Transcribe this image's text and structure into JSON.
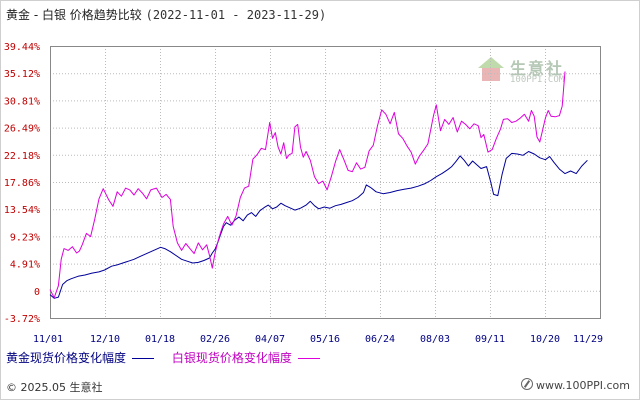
{
  "title": {
    "text": "黄金 - 白银 价格趋势比较",
    "dates": "(2022-11-01 - 2023-11-29)"
  },
  "watermark": {
    "brand": "生意社",
    "site": "100PPI.COM"
  },
  "legend": {
    "gold": "黄金现货价格变化幅度",
    "silver": "白银现货价格变化幅度"
  },
  "footer": {
    "copyright": "© 2025.05 生意社",
    "site": "www.100PPI.com"
  },
  "colors": {
    "gold": "#000099",
    "silver": "#dd00dd",
    "grid": "#bbbbbb"
  },
  "chart_data": {
    "type": "line",
    "y_ticks": [
      "39.44%",
      "35.12%",
      "30.81%",
      "26.49%",
      "22.18%",
      "17.86%",
      "13.54%",
      "9.23%",
      "4.91%",
      "0",
      "-3.72%"
    ],
    "x_ticks": [
      "11/01",
      "12/10",
      "01/18",
      "02/26",
      "04/07",
      "05/16",
      "06/24",
      "08/03",
      "09/11",
      "10/20",
      "11/29"
    ],
    "ylim": [
      -3.72,
      39.44
    ],
    "x_unit": "days since 2022-11-01",
    "xlim": [
      0,
      393
    ],
    "series": [
      {
        "name": "黄金现货价格变化幅度",
        "points": [
          [
            0,
            0
          ],
          [
            3,
            -0.6
          ],
          [
            6,
            -0.4
          ],
          [
            9,
            1.6
          ],
          [
            12,
            2.2
          ],
          [
            15,
            2.5
          ],
          [
            20,
            2.9
          ],
          [
            25,
            3.1
          ],
          [
            30,
            3.4
          ],
          [
            35,
            3.6
          ],
          [
            39,
            3.9
          ],
          [
            44,
            4.5
          ],
          [
            48,
            4.7
          ],
          [
            52,
            5.0
          ],
          [
            56,
            5.3
          ],
          [
            60,
            5.6
          ],
          [
            64,
            6.0
          ],
          [
            68,
            6.4
          ],
          [
            72,
            6.8
          ],
          [
            76,
            7.2
          ],
          [
            79,
            7.5
          ],
          [
            82,
            7.3
          ],
          [
            86,
            6.8
          ],
          [
            90,
            6.2
          ],
          [
            94,
            5.6
          ],
          [
            98,
            5.3
          ],
          [
            102,
            5.0
          ],
          [
            106,
            5.1
          ],
          [
            110,
            5.4
          ],
          [
            114,
            5.8
          ],
          [
            116,
            6.6
          ],
          [
            118,
            7.2
          ],
          [
            120,
            8.3
          ],
          [
            122,
            9.6
          ],
          [
            124,
            10.8
          ],
          [
            126,
            11.4
          ],
          [
            129,
            11.0
          ],
          [
            132,
            11.8
          ],
          [
            135,
            12.3
          ],
          [
            138,
            11.7
          ],
          [
            141,
            12.6
          ],
          [
            144,
            13.0
          ],
          [
            147,
            12.4
          ],
          [
            150,
            13.3
          ],
          [
            153,
            13.8
          ],
          [
            156,
            14.2
          ],
          [
            159,
            13.6
          ],
          [
            162,
            13.9
          ],
          [
            165,
            14.5
          ],
          [
            168,
            14.1
          ],
          [
            171,
            13.8
          ],
          [
            175,
            13.4
          ],
          [
            179,
            13.7
          ],
          [
            183,
            14.2
          ],
          [
            186,
            14.8
          ],
          [
            189,
            14.1
          ],
          [
            192,
            13.6
          ],
          [
            196,
            13.9
          ],
          [
            200,
            13.7
          ],
          [
            204,
            14.1
          ],
          [
            208,
            14.3
          ],
          [
            212,
            14.6
          ],
          [
            216,
            14.9
          ],
          [
            220,
            15.4
          ],
          [
            224,
            16.2
          ],
          [
            226,
            17.4
          ],
          [
            229,
            17.0
          ],
          [
            233,
            16.3
          ],
          [
            238,
            16.0
          ],
          [
            243,
            16.2
          ],
          [
            248,
            16.5
          ],
          [
            253,
            16.7
          ],
          [
            258,
            16.9
          ],
          [
            263,
            17.2
          ],
          [
            268,
            17.6
          ],
          [
            272,
            18.1
          ],
          [
            276,
            18.7
          ],
          [
            280,
            19.2
          ],
          [
            284,
            19.8
          ],
          [
            287,
            20.3
          ],
          [
            290,
            21.1
          ],
          [
            293,
            22.0
          ],
          [
            296,
            21.3
          ],
          [
            299,
            20.4
          ],
          [
            302,
            21.2
          ],
          [
            305,
            20.6
          ],
          [
            308,
            20.0
          ],
          [
            312,
            20.3
          ],
          [
            315,
            17.8
          ],
          [
            317,
            15.9
          ],
          [
            320,
            15.7
          ],
          [
            323,
            19.0
          ],
          [
            326,
            21.6
          ],
          [
            330,
            22.4
          ],
          [
            334,
            22.3
          ],
          [
            338,
            22.1
          ],
          [
            342,
            22.7
          ],
          [
            346,
            22.3
          ],
          [
            350,
            21.7
          ],
          [
            354,
            21.4
          ],
          [
            357,
            21.9
          ],
          [
            360,
            21.0
          ],
          [
            364,
            19.9
          ],
          [
            368,
            19.2
          ],
          [
            372,
            19.6
          ],
          [
            376,
            19.2
          ],
          [
            380,
            20.4
          ],
          [
            384,
            21.3
          ]
        ]
      },
      {
        "name": "白银现货价格变化幅度",
        "points": [
          [
            0,
            0.8
          ],
          [
            3,
            -0.5
          ],
          [
            6,
            1.4
          ],
          [
            8,
            5.6
          ],
          [
            10,
            7.3
          ],
          [
            13,
            7.0
          ],
          [
            16,
            7.6
          ],
          [
            19,
            6.6
          ],
          [
            21,
            6.9
          ],
          [
            23,
            7.9
          ],
          [
            26,
            9.7
          ],
          [
            29,
            9.2
          ],
          [
            32,
            12.0
          ],
          [
            35,
            15.2
          ],
          [
            38,
            16.8
          ],
          [
            42,
            15.0
          ],
          [
            45,
            14.0
          ],
          [
            48,
            16.3
          ],
          [
            51,
            15.6
          ],
          [
            54,
            16.9
          ],
          [
            57,
            16.6
          ],
          [
            60,
            15.8
          ],
          [
            63,
            16.8
          ],
          [
            66,
            16.1
          ],
          [
            69,
            15.2
          ],
          [
            72,
            16.6
          ],
          [
            76,
            16.9
          ],
          [
            80,
            15.4
          ],
          [
            83,
            15.9
          ],
          [
            86,
            15.1
          ],
          [
            88,
            10.8
          ],
          [
            91,
            8.2
          ],
          [
            94,
            7.0
          ],
          [
            97,
            8.1
          ],
          [
            100,
            7.3
          ],
          [
            103,
            6.5
          ],
          [
            106,
            8.2
          ],
          [
            109,
            7.1
          ],
          [
            112,
            7.9
          ],
          [
            114,
            6.2
          ],
          [
            116,
            4.2
          ],
          [
            118,
            6.6
          ],
          [
            120,
            8.4
          ],
          [
            122,
            9.9
          ],
          [
            124,
            11.2
          ],
          [
            127,
            12.4
          ],
          [
            130,
            11.0
          ],
          [
            133,
            12.5
          ],
          [
            136,
            15.4
          ],
          [
            139,
            16.9
          ],
          [
            142,
            17.2
          ],
          [
            145,
            21.5
          ],
          [
            148,
            22.2
          ],
          [
            151,
            23.2
          ],
          [
            154,
            23.0
          ],
          [
            157,
            27.3
          ],
          [
            159,
            24.8
          ],
          [
            161,
            25.7
          ],
          [
            163,
            23.4
          ],
          [
            165,
            22.3
          ],
          [
            167,
            24.1
          ],
          [
            169,
            21.6
          ],
          [
            171,
            22.2
          ],
          [
            173,
            22.4
          ],
          [
            175,
            26.6
          ],
          [
            177,
            27.0
          ],
          [
            179,
            23.4
          ],
          [
            181,
            21.8
          ],
          [
            183,
            22.7
          ],
          [
            186,
            21.3
          ],
          [
            189,
            18.7
          ],
          [
            192,
            17.6
          ],
          [
            195,
            18.0
          ],
          [
            198,
            16.6
          ],
          [
            201,
            18.7
          ],
          [
            204,
            21.1
          ],
          [
            207,
            23.0
          ],
          [
            210,
            21.4
          ],
          [
            213,
            19.7
          ],
          [
            216,
            19.5
          ],
          [
            219,
            20.9
          ],
          [
            222,
            19.9
          ],
          [
            225,
            20.2
          ],
          [
            228,
            22.8
          ],
          [
            231,
            23.7
          ],
          [
            234,
            26.8
          ],
          [
            237,
            29.3
          ],
          [
            240,
            28.6
          ],
          [
            243,
            27.1
          ],
          [
            246,
            28.9
          ],
          [
            249,
            25.5
          ],
          [
            252,
            24.8
          ],
          [
            255,
            23.6
          ],
          [
            258,
            22.6
          ],
          [
            261,
            20.7
          ],
          [
            264,
            22.0
          ],
          [
            267,
            22.9
          ],
          [
            270,
            23.9
          ],
          [
            274,
            28.4
          ],
          [
            276,
            30.1
          ],
          [
            279,
            26.0
          ],
          [
            282,
            27.8
          ],
          [
            285,
            27.0
          ],
          [
            288,
            28.1
          ],
          [
            291,
            25.8
          ],
          [
            294,
            27.5
          ],
          [
            297,
            27.0
          ],
          [
            300,
            26.3
          ],
          [
            303,
            27.1
          ],
          [
            306,
            26.8
          ],
          [
            308,
            24.9
          ],
          [
            310,
            25.4
          ],
          [
            313,
            22.6
          ],
          [
            316,
            23.0
          ],
          [
            319,
            24.8
          ],
          [
            322,
            26.3
          ],
          [
            324,
            27.8
          ],
          [
            327,
            27.9
          ],
          [
            330,
            27.3
          ],
          [
            333,
            27.5
          ],
          [
            336,
            28.0
          ],
          [
            339,
            28.6
          ],
          [
            342,
            27.5
          ],
          [
            344,
            29.2
          ],
          [
            346,
            28.3
          ],
          [
            348,
            25.0
          ],
          [
            350,
            24.2
          ],
          [
            352,
            26.1
          ],
          [
            354,
            28.0
          ],
          [
            356,
            29.2
          ],
          [
            358,
            28.3
          ],
          [
            361,
            28.2
          ],
          [
            364,
            28.4
          ],
          [
            366,
            29.9
          ],
          [
            368,
            35.4
          ]
        ]
      }
    ],
    "grid": true,
    "legend_position": "bottom"
  }
}
